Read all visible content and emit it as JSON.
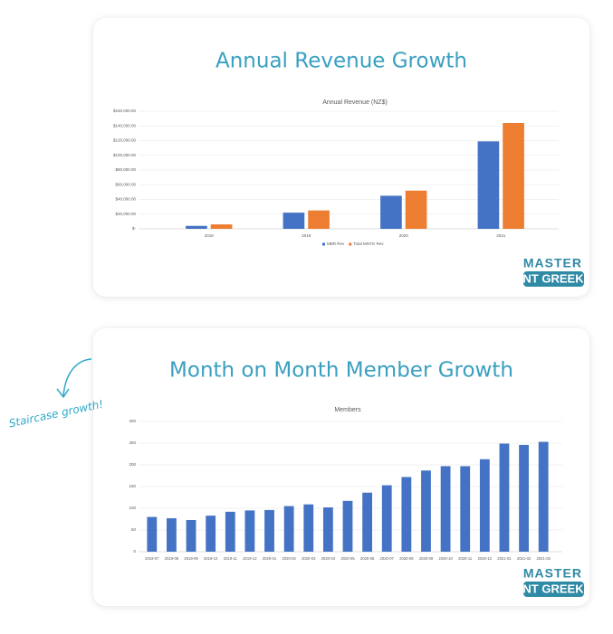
{
  "annotation": "Staircase growth!",
  "logo": {
    "top": "MASTER",
    "bottom": "NT GREEK"
  },
  "cards": [
    {
      "title": "Annual Revenue Growth"
    },
    {
      "title": "Month on Month Member Growth"
    }
  ],
  "chart_data": [
    {
      "type": "bar",
      "title": "Annual Revenue (NZ$)",
      "categories": [
        "2018",
        "2019",
        "2020",
        "2021"
      ],
      "series": [
        {
          "name": "MBR Rev",
          "color": "#4472c4",
          "values": [
            4000,
            22000,
            45000,
            119000
          ]
        },
        {
          "name": "Total MNTG Rev",
          "color": "#ed7d31",
          "values": [
            6000,
            25000,
            52000,
            144000
          ]
        }
      ],
      "ylim": [
        0,
        160000
      ],
      "yticks": [
        {
          "value": 0,
          "label": "$-"
        },
        {
          "value": 20000,
          "label": "$20,000.00"
        },
        {
          "value": 40000,
          "label": "$40,000.00"
        },
        {
          "value": 60000,
          "label": "$60,000.00"
        },
        {
          "value": 80000,
          "label": "$80,000.00"
        },
        {
          "value": 100000,
          "label": "$100,000.00"
        },
        {
          "value": 120000,
          "label": "$120,000.00"
        },
        {
          "value": 140000,
          "label": "$140,000.00"
        },
        {
          "value": 160000,
          "label": "$160,000.00"
        }
      ],
      "grid": true,
      "legend": "bottom"
    },
    {
      "type": "bar",
      "title": "Members",
      "categories": [
        "2019-07",
        "2019-08",
        "2019-09",
        "2019-10",
        "2019-11",
        "2019-12",
        "2020-01",
        "2020-02",
        "2020-03",
        "2020-04",
        "2020-05",
        "2020-06",
        "2020-07",
        "2020-08",
        "2020-09",
        "2020-10",
        "2020-11",
        "2020-12",
        "2021-01",
        "2021-02",
        "2021-03"
      ],
      "values": [
        80,
        77,
        73,
        83,
        92,
        95,
        96,
        105,
        109,
        102,
        117,
        136,
        153,
        172,
        187,
        197,
        197,
        213,
        249,
        246,
        253
      ],
      "color": "#4472c4",
      "ylim": [
        0,
        300
      ],
      "yticks": [
        0,
        50,
        100,
        150,
        200,
        250,
        300
      ],
      "grid": true
    }
  ]
}
